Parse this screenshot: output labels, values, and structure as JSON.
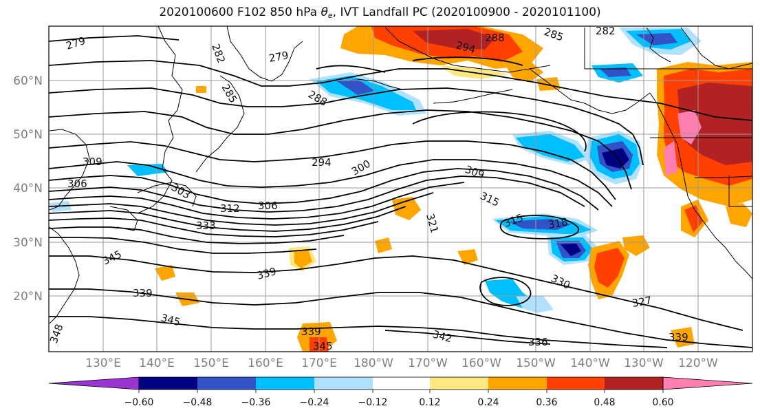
{
  "title": {
    "prefix": "2020100600 F102 850 hPa ",
    "theta_symbol": "θ",
    "theta_subscript": "e",
    "suffix": ", IVT Landfall PC (2020100900 - 2020101100)"
  },
  "map": {
    "longitude_labels": [
      "130°E",
      "140°E",
      "150°E",
      "160°E",
      "170°E",
      "180°W",
      "170°W",
      "160°W",
      "150°W",
      "140°W",
      "130°W",
      "120°W"
    ],
    "latitude_labels": [
      "60°N",
      "50°N",
      "40°N",
      "30°N",
      "20°N"
    ],
    "contour_labels": [
      "279",
      "282",
      "279",
      "285",
      "288",
      "288",
      "294",
      "285",
      "282",
      "309",
      "294",
      "300",
      "303",
      "306",
      "312",
      "306",
      "309",
      "315",
      "321",
      "315",
      "318",
      "333",
      "345",
      "339",
      "339",
      "345",
      "339",
      "345",
      "342",
      "336",
      "330",
      "327",
      "339",
      "348"
    ],
    "land_color": "#000000",
    "gridline_color": "#9a9a9a"
  },
  "colorbar": {
    "tick_labels": [
      "−0.60",
      "−0.48",
      "−0.36",
      "−0.24",
      "−0.12",
      "0.12",
      "0.24",
      "0.36",
      "0.48",
      "0.60"
    ],
    "colors": [
      "#9a35d4",
      "#000082",
      "#3252c8",
      "#00bfff",
      "#b0e2ff",
      "#ffffff",
      "#ffe87f",
      "#ffa500",
      "#ff4000",
      "#b22222",
      "#ff7fb0"
    ]
  }
}
